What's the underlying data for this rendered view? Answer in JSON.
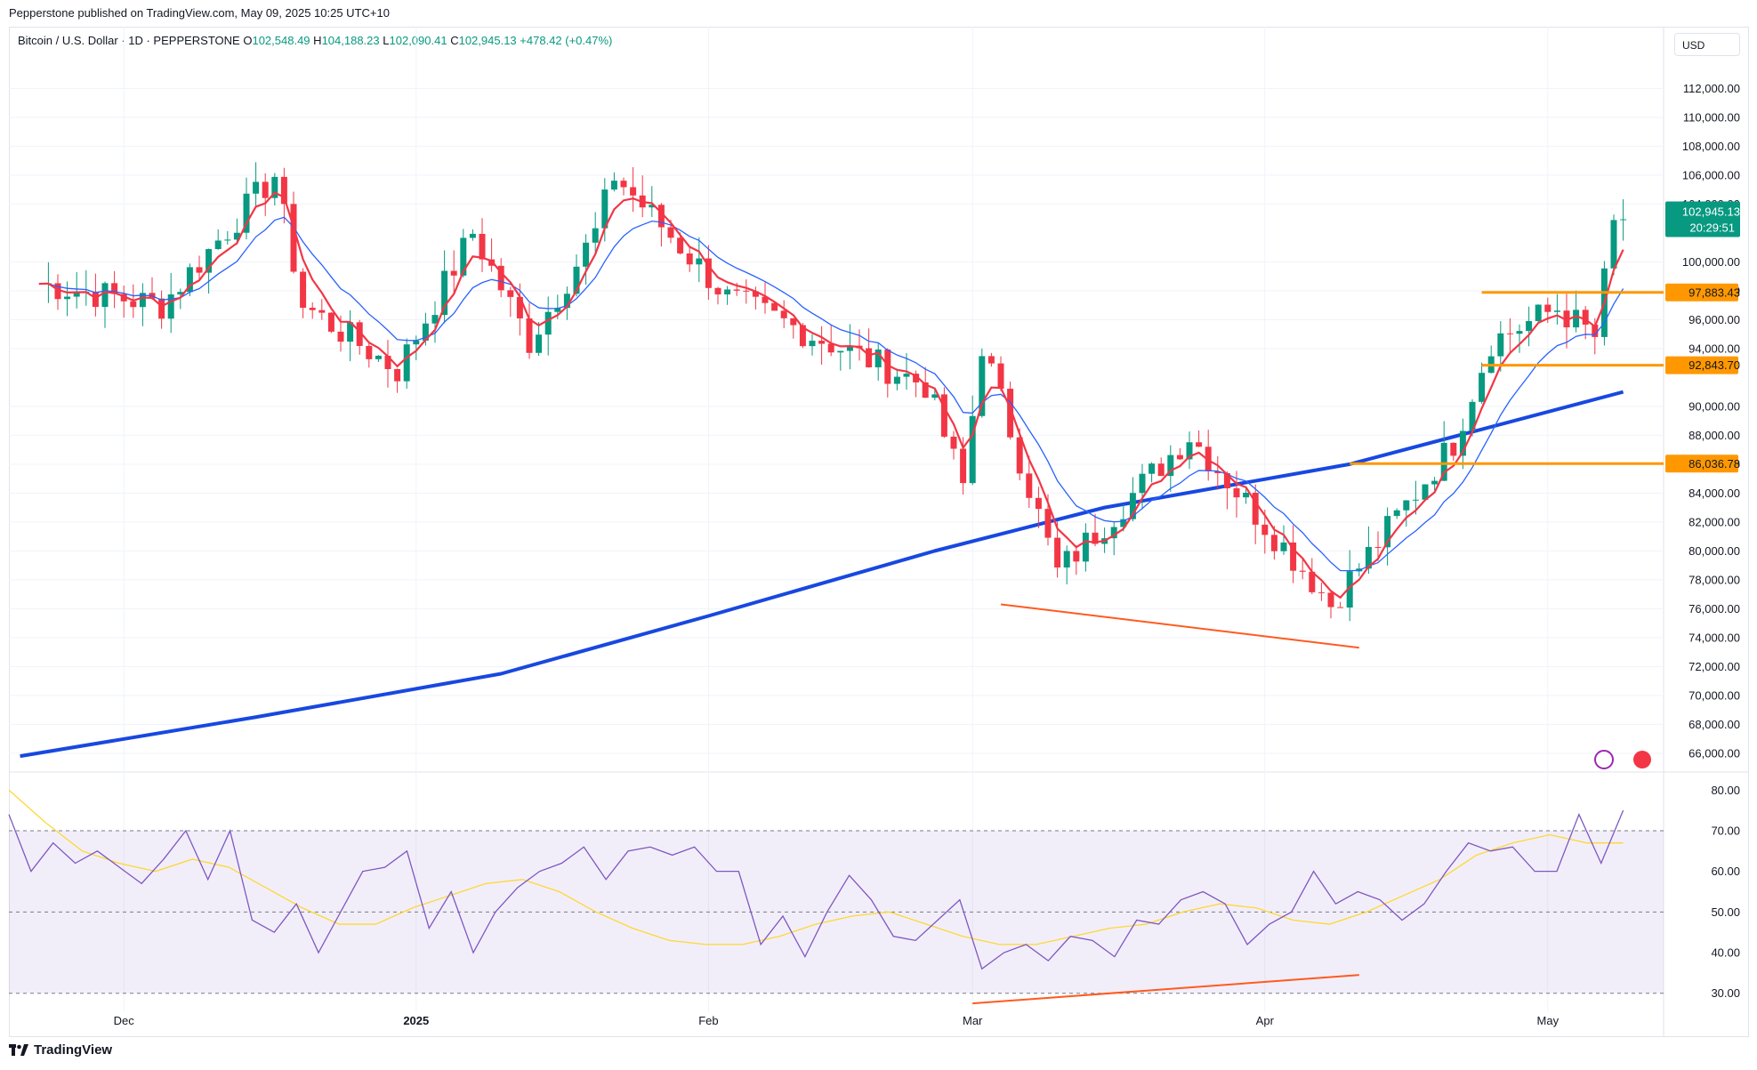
{
  "header": {
    "published": "Pepperstone published on TradingView.com, May 09, 2025 10:25 UTC+10"
  },
  "legend": {
    "symbol": "Bitcoin / U.S. Dollar · 1D · PEPPERSTONE",
    "o_label": "O",
    "o_value": "102,548.49",
    "h_label": "H",
    "h_value": "104,188.23",
    "l_label": "L",
    "l_value": "102,090.41",
    "c_label": "C",
    "c_value": "102,945.13",
    "change": "+478.42 (+0.47%)"
  },
  "currency": "USD",
  "footer": {
    "brand": "TradingView"
  },
  "colors": {
    "up": "#089981",
    "down": "#f23645",
    "ema_fast": "#f23645",
    "ema_slow": "#2962ff",
    "ma_long": "#1848e0",
    "levels": "#ff9800",
    "divergence": "#ff5a1f",
    "rsi": "#7e57c2",
    "rsi_ma": "#fdd835"
  },
  "chart_data": [
    {
      "type": "candlestick",
      "title": "Bitcoin / U.S. Dollar · 1D · PEPPERSTONE",
      "y_ticks": [
        "112,000.00",
        "110,000.00",
        "108,000.00",
        "106,000.00",
        "104,000.00",
        "100,000.00",
        "98,000.00",
        "96,000.00",
        "94,000.00",
        "90,000.00",
        "88,000.00",
        "86,000.00",
        "84,000.00",
        "82,000.00",
        "80,000.00",
        "78,000.00",
        "76,000.00",
        "74,000.00",
        "72,000.00",
        "70,000.00",
        "68,000.00",
        "66,000.00"
      ],
      "ylim": [
        65500,
        113500
      ],
      "x_labels": [
        "Dec",
        "2025",
        "Feb",
        "Mar",
        "Apr",
        "May"
      ],
      "x_label_dates": [
        "2024-12-01",
        "2025-01-01",
        "2025-02-01",
        "2025-03-01",
        "2025-04-01",
        "2025-05-01"
      ],
      "last_price": {
        "value": "102,945.13",
        "countdown": "20:29:51"
      },
      "horizontal_levels": [
        {
          "label": "97,883.43",
          "value": 97883.43,
          "from": "2025-04-24"
        },
        {
          "label": "92,843.70",
          "value": 92843.7,
          "from": "2025-04-24"
        },
        {
          "label": "86,036.78",
          "value": 86036.78,
          "from": "2025-04-10"
        }
      ],
      "trendlines": [
        {
          "from": [
            "2025-03-04",
            76300
          ],
          "to": [
            "2025-04-11",
            73300
          ]
        }
      ],
      "ohlc_keypoints": [
        {
          "date": "2024-11-22",
          "close": 98500
        },
        {
          "date": "2024-12-05",
          "close": 97000
        },
        {
          "date": "2024-12-17",
          "close": 106000
        },
        {
          "date": "2024-12-20",
          "close": 97000
        },
        {
          "date": "2024-12-30",
          "close": 92500
        },
        {
          "date": "2025-01-07",
          "close": 102000
        },
        {
          "date": "2025-01-13",
          "close": 94500
        },
        {
          "date": "2025-01-20",
          "close": 102000
        },
        {
          "date": "2025-01-22",
          "close": 106000
        },
        {
          "date": "2025-02-01",
          "close": 99000
        },
        {
          "date": "2025-02-03",
          "close": 97500
        },
        {
          "date": "2025-02-24",
          "close": 91500
        },
        {
          "date": "2025-02-28",
          "close": 84500
        },
        {
          "date": "2025-03-02",
          "close": 94300
        },
        {
          "date": "2025-03-10",
          "close": 78500
        },
        {
          "date": "2025-03-24",
          "close": 88000
        },
        {
          "date": "2025-04-06",
          "close": 78000
        },
        {
          "date": "2025-04-08",
          "close": 76300
        },
        {
          "date": "2025-04-21",
          "close": 87500
        },
        {
          "date": "2025-04-25",
          "close": 94500
        },
        {
          "date": "2025-05-02",
          "close": 96800
        },
        {
          "date": "2025-05-06",
          "close": 94800
        },
        {
          "date": "2025-05-08",
          "close": 102500
        },
        {
          "date": "2025-05-09",
          "close": 102945.13
        }
      ],
      "moving_average_long": [
        {
          "date": "2024-11-20",
          "value": 65800
        },
        {
          "date": "2024-12-15",
          "value": 68500
        },
        {
          "date": "2025-01-10",
          "value": 71500
        },
        {
          "date": "2025-02-01",
          "value": 75500
        },
        {
          "date": "2025-02-25",
          "value": 80000
        },
        {
          "date": "2025-03-15",
          "value": 83000
        },
        {
          "date": "2025-04-10",
          "value": 86000
        },
        {
          "date": "2025-05-09",
          "value": 91000
        }
      ]
    },
    {
      "type": "line",
      "title": "RSI",
      "y_ticks": [
        "80.00",
        "70.00",
        "60.00",
        "50.00",
        "40.00",
        "30.00"
      ],
      "ylim": [
        26,
        84
      ],
      "bands": [
        30,
        50,
        70
      ],
      "series": [
        {
          "values": [
            74,
            60,
            67,
            62,
            65,
            61,
            57,
            63,
            70,
            58,
            70,
            48,
            45,
            52,
            40,
            50,
            60,
            61,
            65,
            46,
            55,
            40,
            50,
            56,
            60,
            62,
            66,
            58,
            65,
            66,
            64,
            66,
            60,
            60,
            42,
            49,
            39,
            50,
            59,
            53,
            44,
            43,
            48,
            53,
            36,
            40,
            42,
            38,
            44,
            43,
            39,
            48,
            47,
            53,
            55,
            52,
            42,
            47,
            50,
            60,
            52,
            55,
            53,
            48,
            52,
            60,
            67,
            65,
            66,
            60,
            60,
            74,
            62,
            75
          ]
        },
        {
          "values": [
            80,
            72,
            65,
            62,
            60,
            63,
            61,
            56,
            51,
            47,
            47,
            51,
            54,
            57,
            58,
            55,
            50,
            46,
            43,
            42,
            42,
            44,
            47,
            49,
            50,
            47,
            44,
            42,
            42,
            44,
            46,
            47,
            50,
            52,
            51,
            48,
            47,
            50,
            54,
            58,
            64,
            67,
            69,
            67,
            67
          ]
        }
      ]
    }
  ]
}
